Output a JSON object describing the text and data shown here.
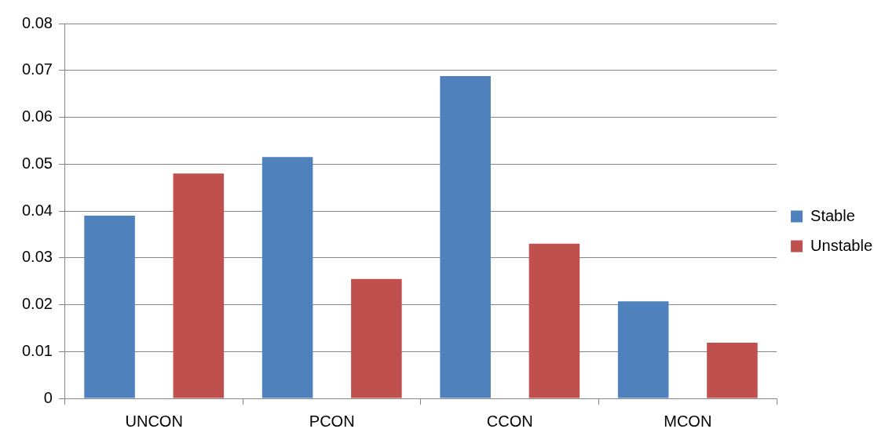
{
  "chart_data": {
    "type": "bar",
    "categories": [
      "UNCON",
      "PCON",
      "CCON",
      "MCON"
    ],
    "series": [
      {
        "name": "Stable",
        "color": "#4f81bd",
        "values": [
          0.039,
          0.0515,
          0.0688,
          0.0207
        ]
      },
      {
        "name": "Unstable",
        "color": "#c0504d",
        "values": [
          0.048,
          0.0255,
          0.033,
          0.0119
        ]
      }
    ],
    "ylim": [
      0,
      0.08
    ],
    "yticks": [
      0,
      0.01,
      0.02,
      0.03,
      0.04,
      0.05,
      0.06,
      0.07,
      0.08
    ],
    "grid": "y",
    "legend": "right"
  }
}
